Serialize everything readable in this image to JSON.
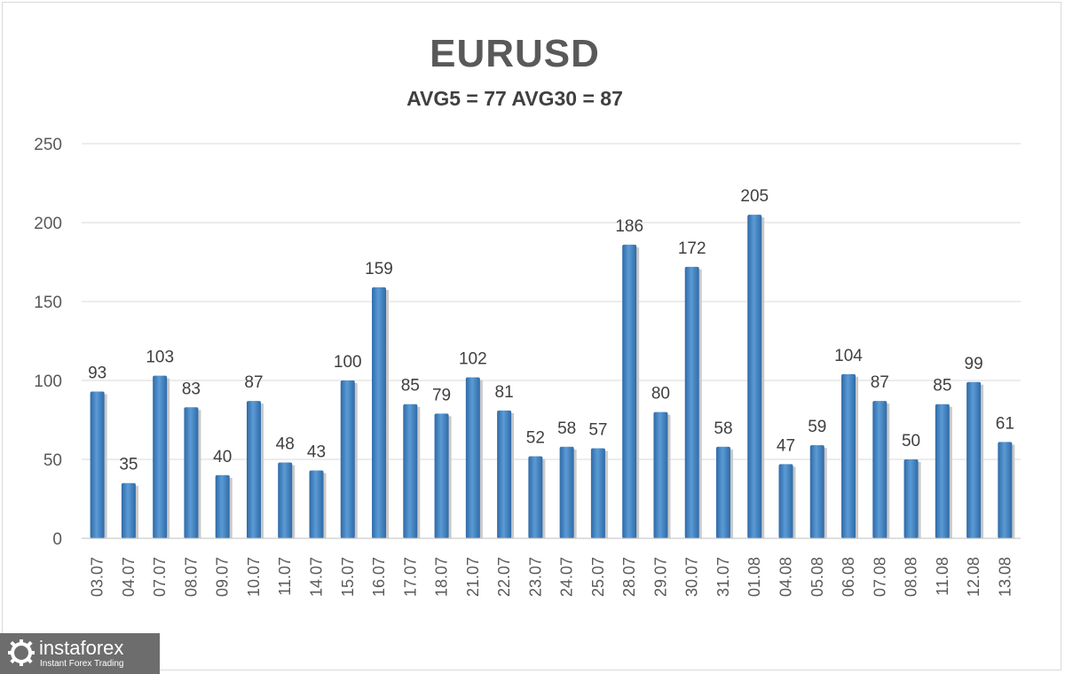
{
  "chart_data": {
    "type": "bar",
    "title": "EURUSD",
    "subtitle": "AVG5 = 77 AVG30 = 87",
    "xlabel": "",
    "ylabel": "",
    "ylim": [
      0,
      250
    ],
    "yticks": [
      0,
      50,
      100,
      150,
      200,
      250
    ],
    "grid": true,
    "legend": "none",
    "bar_color": "#5b9bd5",
    "bar_color_dark": "#2e6aa8",
    "categories": [
      "03.07",
      "04.07",
      "07.07",
      "08.07",
      "09.07",
      "10.07",
      "11.07",
      "14.07",
      "15.07",
      "16.07",
      "17.07",
      "18.07",
      "21.07",
      "22.07",
      "23.07",
      "24.07",
      "25.07",
      "28.07",
      "29.07",
      "30.07",
      "31.07",
      "01.08",
      "04.08",
      "05.08",
      "06.08",
      "07.08",
      "08.08",
      "11.08",
      "12.08",
      "13.08"
    ],
    "values": [
      93,
      35,
      103,
      83,
      40,
      87,
      48,
      43,
      100,
      159,
      85,
      79,
      102,
      81,
      52,
      58,
      57,
      186,
      80,
      172,
      58,
      205,
      47,
      59,
      104,
      87,
      50,
      85,
      99,
      61
    ]
  },
  "branding": {
    "logo_name": "instaforex",
    "logo_tagline": "Instant Forex Trading",
    "icon": "instaforex-logo-icon"
  }
}
